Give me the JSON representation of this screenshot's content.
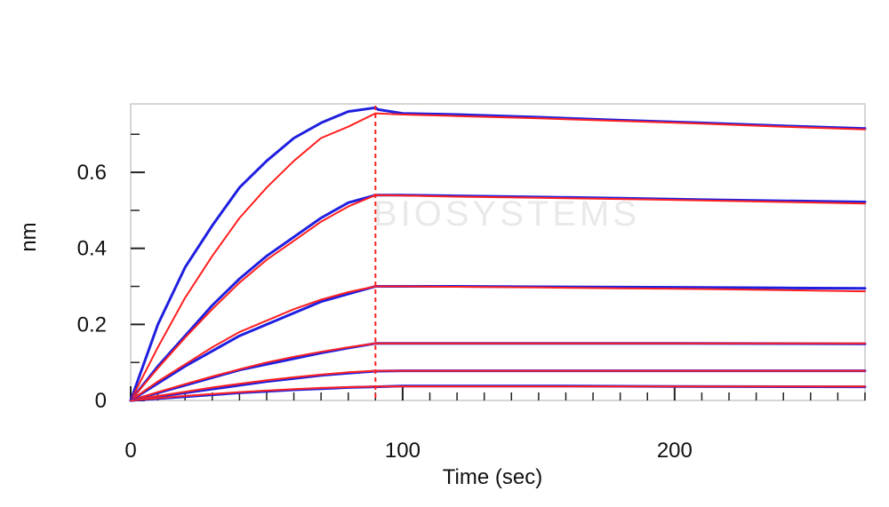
{
  "chart_data": {
    "type": "line",
    "title": "",
    "xlabel": "Time (sec)",
    "ylabel": "nm",
    "xlim": [
      0,
      270
    ],
    "ylim": [
      0,
      0.78
    ],
    "x_ticks": [
      0,
      100,
      200
    ],
    "x_tick_labels": [
      "0",
      "100",
      "200"
    ],
    "y_ticks": [
      0,
      0.2,
      0.4,
      0.6
    ],
    "y_tick_labels": [
      "0",
      "0.2",
      "0.4",
      "0.6"
    ],
    "grid": false,
    "legend": "none",
    "association_end_marker": 90,
    "watermark_text": "BIOSYSTEMS",
    "colors": {
      "measured": "#1f1fe0",
      "fit": "#ff2020",
      "marker": "#ff2020"
    },
    "series": [
      {
        "kind": "measured",
        "x": [
          0,
          10,
          20,
          30,
          40,
          50,
          60,
          70,
          80,
          90,
          91,
          100,
          120,
          150,
          180,
          210,
          240,
          270
        ],
        "values": [
          0,
          0.2,
          0.35,
          0.46,
          0.56,
          0.63,
          0.69,
          0.73,
          0.76,
          0.77,
          0.765,
          0.755,
          0.752,
          0.745,
          0.737,
          0.73,
          0.722,
          0.715
        ]
      },
      {
        "kind": "fit",
        "x": [
          0,
          10,
          20,
          30,
          40,
          50,
          60,
          70,
          80,
          90,
          91,
          100,
          120,
          150,
          180,
          210,
          240,
          270
        ],
        "values": [
          0,
          0.14,
          0.27,
          0.38,
          0.48,
          0.56,
          0.63,
          0.69,
          0.72,
          0.755,
          0.755,
          0.752,
          0.748,
          0.742,
          0.735,
          0.728,
          0.72,
          0.713
        ]
      },
      {
        "kind": "measured",
        "x": [
          0,
          10,
          20,
          30,
          40,
          50,
          60,
          70,
          80,
          90,
          100,
          120,
          150,
          180,
          210,
          240,
          270
        ],
        "values": [
          0,
          0.09,
          0.17,
          0.25,
          0.32,
          0.38,
          0.43,
          0.48,
          0.52,
          0.54,
          0.54,
          0.538,
          0.535,
          0.532,
          0.528,
          0.525,
          0.522
        ]
      },
      {
        "kind": "fit",
        "x": [
          0,
          10,
          20,
          30,
          40,
          50,
          60,
          70,
          80,
          90,
          100,
          120,
          150,
          180,
          210,
          240,
          270
        ],
        "values": [
          0,
          0.085,
          0.165,
          0.24,
          0.31,
          0.37,
          0.42,
          0.47,
          0.51,
          0.54,
          0.539,
          0.536,
          0.533,
          0.53,
          0.526,
          0.522,
          0.518
        ]
      },
      {
        "kind": "measured",
        "x": [
          0,
          10,
          20,
          30,
          40,
          50,
          60,
          70,
          80,
          90,
          100,
          120,
          150,
          180,
          210,
          240,
          270
        ],
        "values": [
          0,
          0.045,
          0.09,
          0.13,
          0.17,
          0.2,
          0.23,
          0.26,
          0.28,
          0.3,
          0.3,
          0.3,
          0.299,
          0.298,
          0.297,
          0.296,
          0.295
        ]
      },
      {
        "kind": "fit",
        "x": [
          0,
          10,
          20,
          30,
          40,
          50,
          60,
          70,
          80,
          90,
          100,
          120,
          150,
          180,
          210,
          240,
          270
        ],
        "values": [
          0,
          0.05,
          0.095,
          0.14,
          0.18,
          0.21,
          0.24,
          0.265,
          0.285,
          0.3,
          0.3,
          0.299,
          0.297,
          0.295,
          0.293,
          0.29,
          0.287
        ]
      },
      {
        "kind": "measured",
        "x": [
          0,
          10,
          20,
          30,
          40,
          50,
          60,
          70,
          80,
          90,
          100,
          150,
          200,
          270
        ],
        "values": [
          0,
          0.02,
          0.04,
          0.06,
          0.08,
          0.095,
          0.11,
          0.125,
          0.138,
          0.15,
          0.15,
          0.15,
          0.15,
          0.149
        ]
      },
      {
        "kind": "fit",
        "x": [
          0,
          10,
          20,
          30,
          40,
          50,
          60,
          70,
          80,
          90,
          100,
          150,
          200,
          270
        ],
        "values": [
          0,
          0.022,
          0.043,
          0.063,
          0.082,
          0.1,
          0.115,
          0.128,
          0.14,
          0.15,
          0.15,
          0.15,
          0.15,
          0.15
        ]
      },
      {
        "kind": "measured",
        "x": [
          0,
          10,
          20,
          30,
          40,
          50,
          60,
          70,
          80,
          90,
          100,
          150,
          200,
          270
        ],
        "values": [
          0,
          0.01,
          0.02,
          0.03,
          0.04,
          0.05,
          0.058,
          0.066,
          0.072,
          0.077,
          0.078,
          0.078,
          0.078,
          0.078
        ]
      },
      {
        "kind": "fit",
        "x": [
          0,
          10,
          20,
          30,
          40,
          50,
          60,
          70,
          80,
          90,
          100,
          150,
          200,
          270
        ],
        "values": [
          0,
          0.012,
          0.023,
          0.034,
          0.044,
          0.053,
          0.061,
          0.068,
          0.074,
          0.078,
          0.078,
          0.078,
          0.078,
          0.078
        ]
      },
      {
        "kind": "measured",
        "x": [
          0,
          10,
          20,
          30,
          40,
          50,
          60,
          70,
          80,
          90,
          100,
          150,
          200,
          270
        ],
        "values": [
          0,
          0.005,
          0.01,
          0.015,
          0.02,
          0.024,
          0.028,
          0.031,
          0.034,
          0.036,
          0.038,
          0.038,
          0.037,
          0.036
        ]
      },
      {
        "kind": "fit",
        "x": [
          0,
          10,
          20,
          30,
          40,
          50,
          60,
          70,
          80,
          90,
          100,
          150,
          200,
          270
        ],
        "values": [
          0,
          0.006,
          0.012,
          0.017,
          0.022,
          0.026,
          0.03,
          0.033,
          0.035,
          0.037,
          0.037,
          0.037,
          0.037,
          0.037
        ]
      }
    ]
  }
}
